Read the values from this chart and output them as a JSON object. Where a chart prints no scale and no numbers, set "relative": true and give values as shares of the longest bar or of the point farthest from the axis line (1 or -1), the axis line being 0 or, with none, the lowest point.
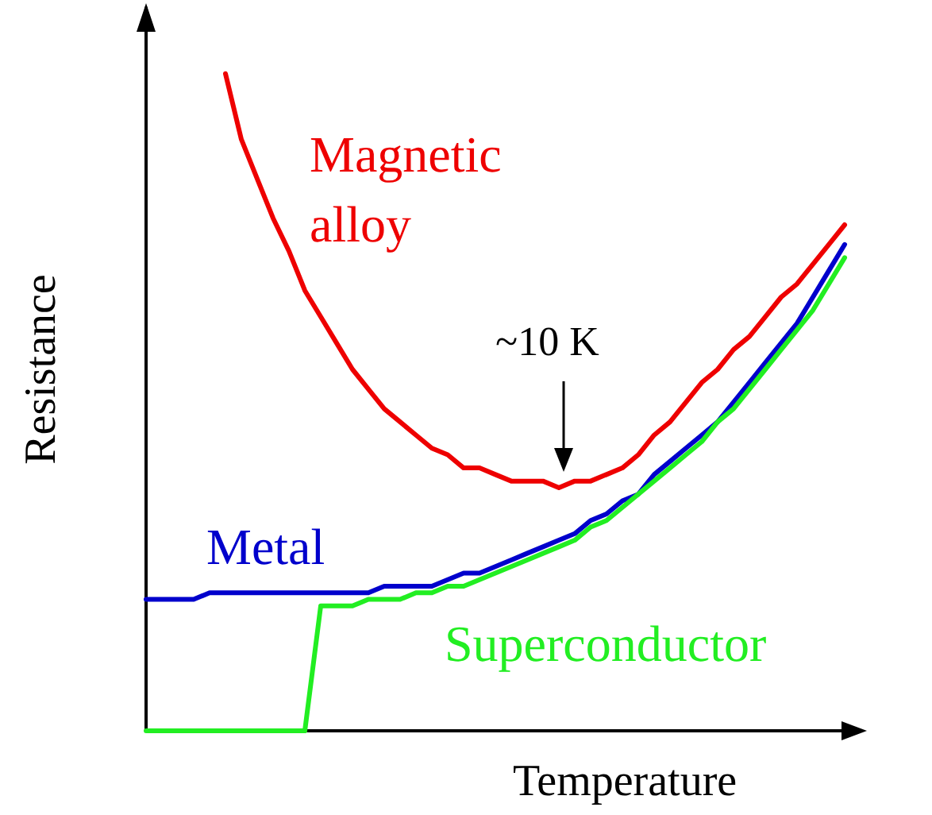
{
  "chart_data": {
    "type": "line",
    "relative": true,
    "xlabel": "Temperature",
    "ylabel": "Resistance",
    "categories": [
      null,
      null,
      null,
      null,
      null,
      null,
      null,
      null,
      null,
      null,
      null,
      null,
      null,
      null,
      null,
      null,
      null,
      null,
      null,
      null,
      null,
      null,
      null,
      null,
      null,
      null,
      null,
      null,
      null,
      null,
      null,
      null,
      null,
      null,
      null,
      null,
      null,
      null,
      null,
      null,
      null,
      null,
      null,
      null,
      null
    ],
    "series": [
      {
        "name": "Magnetic alloy",
        "color": "#ee0000",
        "values": [
          null,
          null,
          null,
          null,
          null,
          1,
          0.9,
          0.84,
          0.78,
          0.73,
          0.67,
          0.63,
          0.59,
          0.55,
          0.52,
          0.49,
          0.47,
          0.45,
          0.43,
          0.42,
          0.4,
          0.4,
          0.39,
          0.38,
          0.38,
          0.38,
          0.37,
          0.38,
          0.38,
          0.39,
          0.4,
          0.42,
          0.45,
          0.47,
          0.5,
          0.53,
          0.55,
          0.58,
          0.6,
          0.63,
          0.66,
          0.68,
          0.71,
          0.74,
          0.77
        ]
      },
      {
        "name": "Metal",
        "color": "#0000cc",
        "values": [
          0.2,
          0.2,
          0.2,
          0.2,
          0.21,
          0.21,
          0.21,
          0.21,
          0.21,
          0.21,
          0.21,
          0.21,
          0.21,
          0.21,
          0.21,
          0.22,
          0.22,
          0.22,
          0.22,
          0.23,
          0.24,
          0.24,
          0.25,
          0.26,
          0.27,
          0.28,
          0.29,
          0.3,
          0.32,
          0.33,
          0.35,
          0.36,
          0.39,
          0.41,
          0.43,
          0.45,
          0.47,
          0.5,
          0.53,
          0.56,
          0.59,
          0.62,
          0.66,
          0.7,
          0.74
        ]
      },
      {
        "name": "Superconductor",
        "color": "#22ee22",
        "values": [
          0,
          0,
          0,
          0,
          0,
          0,
          0,
          0,
          0,
          0,
          0,
          0.19,
          0.19,
          0.19,
          0.2,
          0.2,
          0.2,
          0.21,
          0.21,
          0.22,
          0.22,
          0.23,
          0.24,
          0.25,
          0.26,
          0.27,
          0.28,
          0.29,
          0.31,
          0.32,
          0.34,
          0.36,
          0.38,
          0.4,
          0.42,
          0.44,
          0.47,
          0.49,
          0.52,
          0.55,
          0.58,
          0.61,
          0.64,
          0.68,
          0.72
        ]
      }
    ],
    "annotations": [
      "~10 K"
    ],
    "grid": false,
    "legend": false,
    "marker": "none",
    "line_style": "solid"
  }
}
